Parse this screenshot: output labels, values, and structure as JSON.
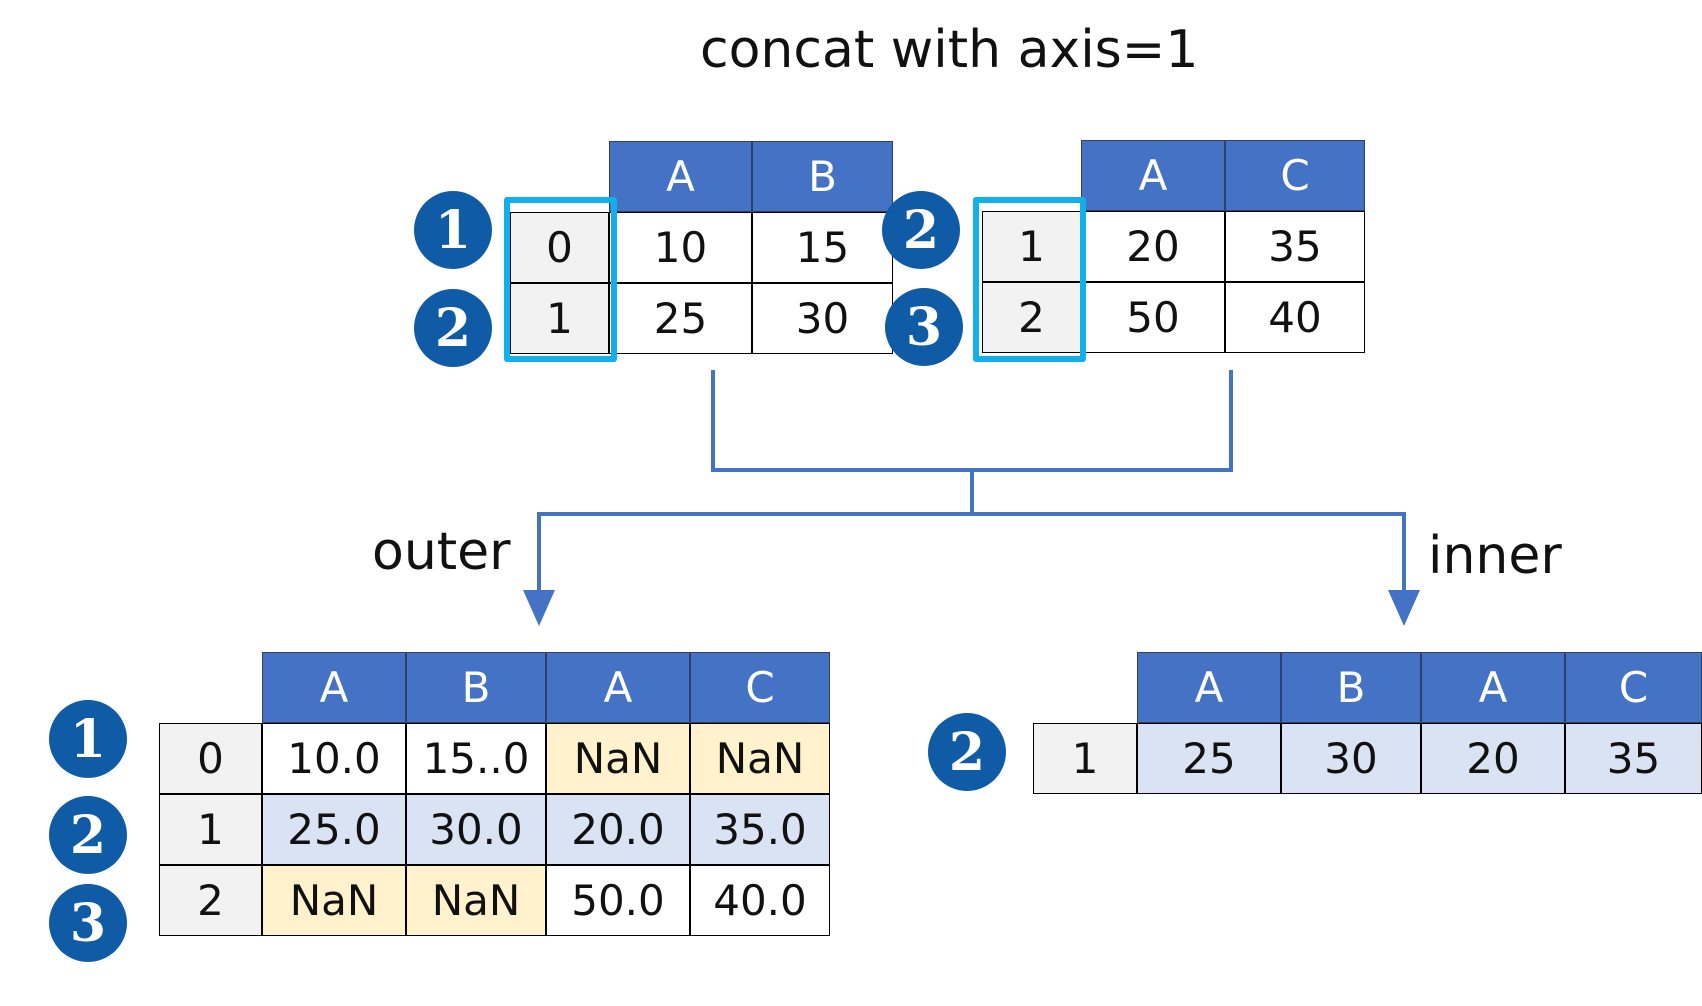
{
  "title": "concat with axis=1",
  "labels": {
    "outer": "outer",
    "inner": "inner"
  },
  "colors": {
    "header": "#4472c4",
    "badge": "#0f5ba6",
    "highlight": "#12b0ea",
    "nan_fill": "#fff2cc",
    "match_fill": "#dae3f3",
    "index_fill": "#f2f2f2",
    "arrow": "#4472c4"
  },
  "df1": {
    "columns": [
      "A",
      "B"
    ],
    "index": [
      "0",
      "1"
    ],
    "rows": [
      [
        "10",
        "15"
      ],
      [
        "25",
        "30"
      ]
    ],
    "badges": [
      "1",
      "2"
    ]
  },
  "df2": {
    "columns": [
      "A",
      "C"
    ],
    "index": [
      "1",
      "2"
    ],
    "rows": [
      [
        "20",
        "35"
      ],
      [
        "50",
        "40"
      ]
    ],
    "badges": [
      "2",
      "3"
    ]
  },
  "outer": {
    "columns": [
      "A",
      "B",
      "A",
      "C"
    ],
    "index": [
      "0",
      "1",
      "2"
    ],
    "rows": [
      [
        "10.0",
        "15..0",
        "NaN",
        "NaN"
      ],
      [
        "25.0",
        "30.0",
        "20.0",
        "35.0"
      ],
      [
        "NaN",
        "NaN",
        "50.0",
        "40.0"
      ]
    ],
    "badges": [
      "1",
      "2",
      "3"
    ]
  },
  "inner": {
    "columns": [
      "A",
      "B",
      "A",
      "C"
    ],
    "index": [
      "1"
    ],
    "rows": [
      [
        "25",
        "30",
        "20",
        "35"
      ]
    ],
    "badges": [
      "2"
    ]
  }
}
